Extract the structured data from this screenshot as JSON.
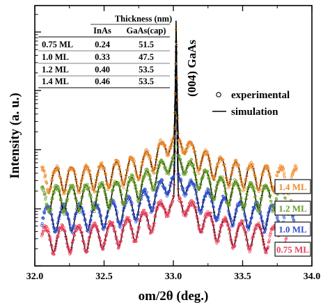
{
  "chart_data": {
    "type": "scatter",
    "xlabel": "om/2θ (deg.)",
    "ylabel": "Intensity (a. u.)",
    "xlim": [
      32.0,
      34.0
    ],
    "x_ticks": [
      "32.0",
      "32.5",
      "33.0",
      "33.5",
      "34.0"
    ],
    "log_scale_y": true,
    "peak_annotation": "(004) GaAs",
    "peak_position": 33.02,
    "legend": {
      "experimental": "experimental",
      "simulation": "simulation",
      "placement": "right, below peak"
    },
    "series": [
      {
        "name": "0.75 ML",
        "color": "#e8405a",
        "fringe_period": 0.118,
        "x_start": 32.1,
        "x_end": 33.68
      },
      {
        "name": "1.0 ML",
        "color": "#3050d0",
        "fringe_period": 0.116,
        "x_start": 32.1,
        "x_end": 33.72
      },
      {
        "name": "1.2 ML",
        "color": "#6a9e28",
        "fringe_period": 0.108,
        "x_start": 32.1,
        "x_end": 33.7
      },
      {
        "name": "1.4 ML",
        "color": "#f08a2a",
        "fringe_period": 0.108,
        "x_start": 32.1,
        "x_end": 33.74
      }
    ],
    "table": {
      "group_header": "Thickness (nm)",
      "col_inas": "InAs",
      "col_gaas": "GaAs(cap)",
      "rows": [
        {
          "sample": "0.75 ML",
          "inas": "0.24",
          "gaas": "51.5"
        },
        {
          "sample": "1.0 ML",
          "inas": "0.33",
          "gaas": "47.5"
        },
        {
          "sample": "1.2 ML",
          "inas": "0.40",
          "gaas": "53.5"
        },
        {
          "sample": "1.4 ML",
          "inas": "0.46",
          "gaas": "53.5"
        }
      ]
    }
  }
}
